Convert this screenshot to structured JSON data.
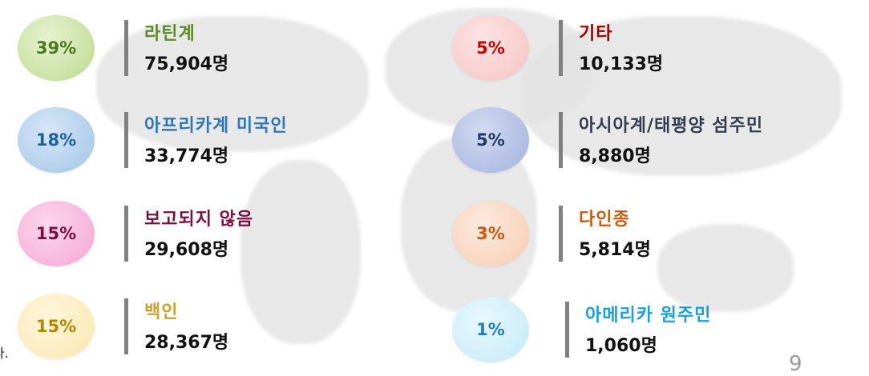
{
  "items": [
    {
      "percent": "39%",
      "label": "라틴계",
      "count": "75,904명"
    },
    {
      "percent": "18%",
      "label": "아프리카계 미국인",
      "count": "33,774명"
    },
    {
      "percent": "15%",
      "label": "보고되지 않음",
      "count": "29,608명"
    },
    {
      "percent": "15%",
      "label": "백인",
      "count": "28,367명"
    },
    {
      "percent": "5%",
      "label": "기타",
      "count": "10,133명"
    },
    {
      "percent": "5%",
      "label": "아시아계/태평양 섬주민",
      "count": "8,880명"
    },
    {
      "percent": "3%",
      "label": "다인종",
      "count": "5,814명"
    },
    {
      "percent": "1%",
      "label": "아메리카 원주민",
      "count": "1,060명"
    }
  ],
  "footer": {
    "fragment": "다.",
    "page": "9"
  }
}
